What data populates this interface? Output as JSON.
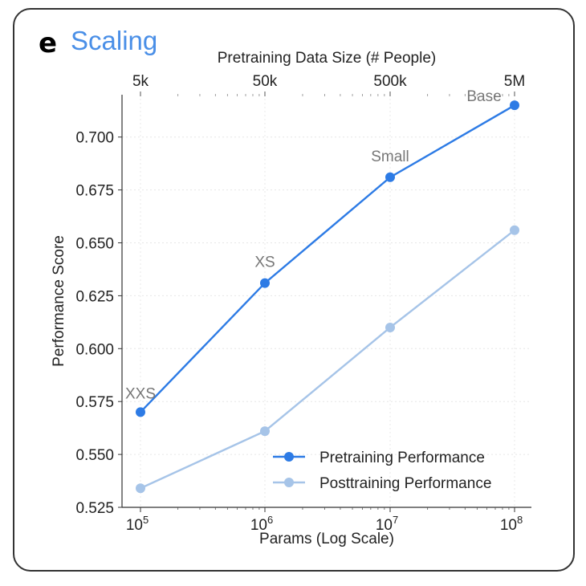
{
  "panel": {
    "letter": "e",
    "title": "Scaling"
  },
  "colors": {
    "pretraining": "#2d7be5",
    "posttraining": "#a6c4e8",
    "title": "#4a8fe7"
  },
  "chart_data": {
    "type": "line",
    "xlabel": "Params (Log Scale)",
    "ylabel": "Performance Score",
    "top_xlabel": "Pretraining Data Size (# People)",
    "x_scale": "log",
    "x": [
      100000,
      1000000,
      10000000,
      100000000
    ],
    "x_tick_labels": [
      {
        "base": "10",
        "exp": "5"
      },
      {
        "base": "10",
        "exp": "6"
      },
      {
        "base": "10",
        "exp": "7"
      },
      {
        "base": "10",
        "exp": "8"
      }
    ],
    "top_tick_labels": [
      "5k",
      "50k",
      "500k",
      "5M"
    ],
    "ylim": [
      0.525,
      0.72
    ],
    "y_ticks": [
      "0.525",
      "0.550",
      "0.575",
      "0.600",
      "0.625",
      "0.650",
      "0.675",
      "0.700"
    ],
    "grid": true,
    "legend": "bottom-right",
    "point_labels": [
      "XXS",
      "XS",
      "Small",
      "Base"
    ],
    "series": [
      {
        "name": "Pretraining Performance",
        "values": [
          0.57,
          0.631,
          0.681,
          0.715
        ]
      },
      {
        "name": "Posttraining Performance",
        "values": [
          0.534,
          0.561,
          0.61,
          0.656
        ]
      }
    ]
  }
}
